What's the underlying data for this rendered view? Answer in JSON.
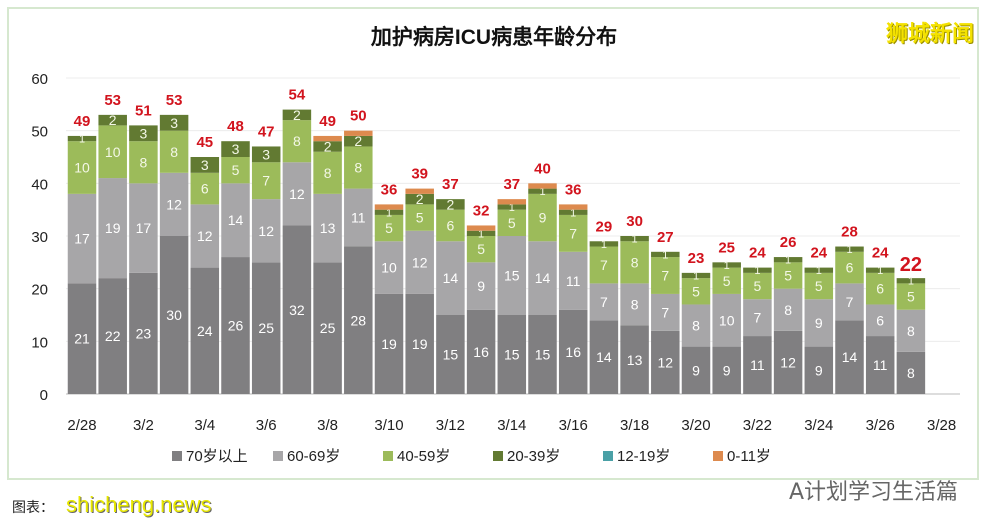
{
  "chart_data": {
    "type": "bar",
    "stacked": true,
    "title": "加护病房ICU病患年龄分布",
    "categories": [
      "2/28",
      "3/1",
      "3/2",
      "3/3",
      "3/4",
      "3/5",
      "3/6",
      "3/7",
      "3/8",
      "3/9",
      "3/10",
      "3/11",
      "3/12",
      "3/13",
      "3/14",
      "3/15",
      "3/16",
      "3/17",
      "3/18",
      "3/19",
      "3/20",
      "3/21",
      "3/22",
      "3/23",
      "3/24",
      "3/25",
      "3/26",
      "3/27"
    ],
    "x_tick_labels": [
      "2/28",
      "3/2",
      "3/4",
      "3/6",
      "3/8",
      "3/10",
      "3/12",
      "3/14",
      "3/16",
      "3/18",
      "3/20",
      "3/22",
      "3/24",
      "3/26",
      "3/28"
    ],
    "y_ticks": [
      0,
      10,
      20,
      30,
      40,
      50,
      60
    ],
    "ylim": [
      0,
      60
    ],
    "grid": true,
    "legend_position": "bottom",
    "series": [
      {
        "name": "70岁以上",
        "color": "#807f81",
        "values": [
          21,
          22,
          23,
          30,
          24,
          26,
          25,
          32,
          25,
          28,
          19,
          19,
          15,
          16,
          15,
          15,
          16,
          14,
          13,
          12,
          9,
          9,
          11,
          12,
          9,
          14,
          11,
          8
        ]
      },
      {
        "name": "60-69岁",
        "color": "#a7a6a8",
        "values": [
          17,
          19,
          17,
          12,
          12,
          14,
          12,
          12,
          13,
          11,
          10,
          12,
          14,
          9,
          15,
          14,
          11,
          7,
          8,
          7,
          8,
          10,
          7,
          8,
          9,
          7,
          6,
          8
        ]
      },
      {
        "name": "40-59岁",
        "color": "#9cbb5a",
        "values": [
          10,
          10,
          8,
          8,
          6,
          5,
          7,
          8,
          8,
          8,
          5,
          5,
          6,
          5,
          5,
          9,
          7,
          7,
          8,
          7,
          5,
          5,
          5,
          5,
          5,
          6,
          6,
          5
        ]
      },
      {
        "name": "20-39岁",
        "color": "#627a32",
        "values": [
          1,
          2,
          3,
          3,
          3,
          3,
          3,
          2,
          2,
          2,
          1,
          2,
          2,
          1,
          1,
          1,
          1,
          1,
          1,
          1,
          1,
          1,
          1,
          1,
          1,
          1,
          1,
          1
        ]
      },
      {
        "name": "12-19岁",
        "color": "#4aa0a6",
        "values": [
          0,
          0,
          0,
          0,
          0,
          0,
          0,
          0,
          0,
          0,
          0,
          0,
          0,
          0,
          0,
          0,
          0,
          0,
          0,
          0,
          0,
          0,
          0,
          0,
          0,
          0,
          0,
          0
        ]
      },
      {
        "name": "0-11岁",
        "color": "#dd8a4e",
        "values": [
          0,
          0,
          0,
          0,
          0,
          0,
          0,
          0,
          1,
          1,
          1,
          1,
          0,
          1,
          1,
          1,
          1,
          0,
          0,
          0,
          0,
          0,
          0,
          0,
          0,
          0,
          0,
          0
        ]
      }
    ],
    "totals": [
      49,
      53,
      51,
      53,
      45,
      48,
      47,
      54,
      49,
      50,
      36,
      39,
      37,
      32,
      37,
      40,
      36,
      29,
      30,
      27,
      23,
      25,
      24,
      26,
      24,
      28,
      24,
      22
    ],
    "total_label_color": "#d2141e"
  },
  "watermarks": {
    "top_right": "狮城新闻",
    "bottom_left": "shicheng.news",
    "bottom_right": "A计划学习生活篇"
  },
  "caption": "图表："
}
